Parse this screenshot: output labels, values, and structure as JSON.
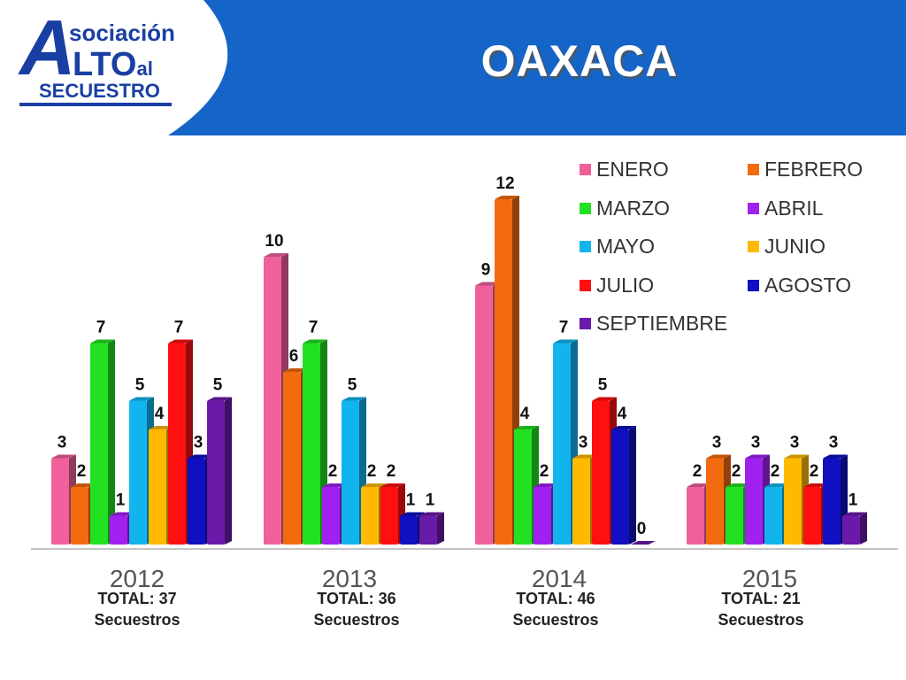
{
  "header": {
    "title": "OAXACA",
    "logo": {
      "big_letter": "A",
      "line1": "sociación",
      "line2_big": "LTO",
      "line2_small": "al",
      "line3": "SECUESTRO"
    }
  },
  "colors": {
    "header_blue": "#1565c8",
    "text": "#222222"
  },
  "chart_data": {
    "type": "bar",
    "categories": [
      "2012",
      "2013",
      "2014",
      "2015"
    ],
    "series": [
      {
        "name": "ENERO",
        "color": "#f0609a",
        "values": [
          3,
          10,
          9,
          2
        ]
      },
      {
        "name": "FEBRERO",
        "color": "#f26b0f",
        "values": [
          2,
          6,
          12,
          3
        ]
      },
      {
        "name": "MARZO",
        "color": "#22e022",
        "values": [
          7,
          7,
          4,
          2
        ]
      },
      {
        "name": "ABRIL",
        "color": "#a020f0",
        "values": [
          1,
          2,
          2,
          3
        ]
      },
      {
        "name": "MAYO",
        "color": "#12b4ee",
        "values": [
          5,
          5,
          7,
          2
        ]
      },
      {
        "name": "JUNIO",
        "color": "#ffba00",
        "values": [
          4,
          2,
          3,
          3
        ]
      },
      {
        "name": "JULIO",
        "color": "#ff1010",
        "values": [
          7,
          2,
          5,
          2
        ]
      },
      {
        "name": "AGOSTO",
        "color": "#1010c0",
        "values": [
          3,
          1,
          4,
          3
        ]
      },
      {
        "name": "SEPTIEMBRE",
        "color": "#6a1aa8",
        "values": [
          5,
          1,
          0,
          1
        ]
      }
    ],
    "data_labels": [
      [
        "3",
        "2",
        "7",
        "1",
        "5",
        "4",
        "7",
        "3",
        "5"
      ],
      [
        "10",
        "6",
        "7",
        "2",
        "5",
        "2",
        "2",
        "1",
        "1"
      ],
      [
        "9",
        "12",
        "4",
        "2",
        "7",
        "3",
        "5",
        "4",
        "0"
      ],
      [
        "2",
        "3",
        "2",
        "3",
        "2",
        "3",
        "2",
        "3",
        "1"
      ]
    ],
    "ylim": [
      0,
      12
    ],
    "legend_position": "top-right",
    "totals": [
      {
        "line1": "TOTAL: 37",
        "line2": "Secuestros"
      },
      {
        "line1": "TOTAL: 36",
        "line2": "Secuestros"
      },
      {
        "line1": "TOTAL: 46",
        "line2": "Secuestros"
      },
      {
        "line1": "TOTAL: 21",
        "line2": "Secuestros"
      }
    ]
  }
}
